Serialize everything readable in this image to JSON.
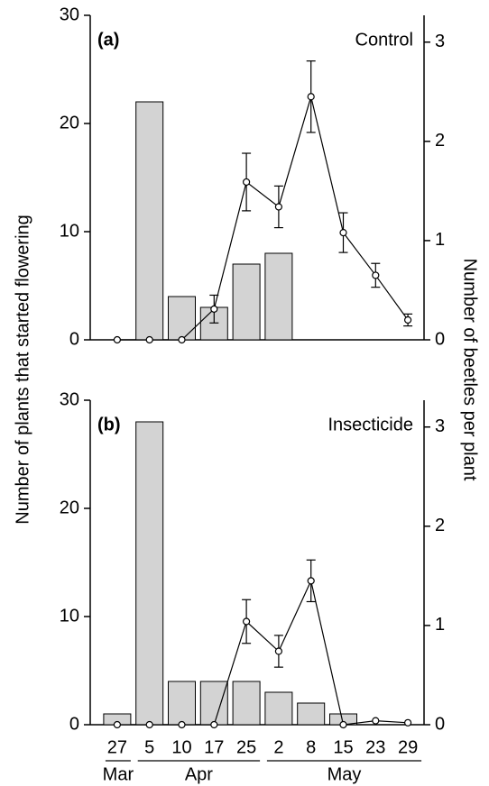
{
  "chart_data": [
    {
      "type": "bar",
      "panel_label": "(a)",
      "annotation": "Control",
      "ylabel": "Number of plants that started flowering",
      "y2label": "Number of beetles per plant",
      "ylim": [
        0,
        30
      ],
      "yticks": [
        0,
        10,
        20,
        30
      ],
      "y2lim": [
        0,
        3.27
      ],
      "y2ticks": [
        0,
        1,
        2,
        3
      ],
      "series": [
        {
          "type": "bar",
          "color": "#d3d3d3",
          "values": [
            0,
            22,
            4,
            3,
            7,
            8,
            0,
            0,
            0,
            0
          ]
        },
        {
          "type": "line",
          "axis": "y2",
          "color": "#000000",
          "values": [
            0,
            0,
            0,
            0.31,
            1.59,
            1.34,
            2.45,
            1.08,
            0.65,
            0.2
          ],
          "errors": [
            null,
            null,
            null,
            0.14,
            0.29,
            0.21,
            0.36,
            0.2,
            0.12,
            0.06
          ]
        }
      ]
    },
    {
      "type": "bar",
      "panel_label": "(b)",
      "annotation": "Insecticide",
      "categories": [
        "27",
        "5",
        "10",
        "17",
        "25",
        "2",
        "8",
        "15",
        "23",
        "29"
      ],
      "months": [
        "Mar",
        "Apr",
        "May"
      ],
      "ylim": [
        0,
        30
      ],
      "yticks": [
        0,
        10,
        20,
        30
      ],
      "y2lim": [
        0,
        3.27
      ],
      "y2ticks": [
        0,
        1,
        2,
        3
      ],
      "series": [
        {
          "type": "bar",
          "color": "#d3d3d3",
          "values": [
            1,
            28,
            4,
            4,
            4,
            3,
            2,
            1,
            0,
            0
          ]
        },
        {
          "type": "line",
          "axis": "y2",
          "color": "#000000",
          "values": [
            0,
            0,
            0,
            0,
            1.04,
            0.74,
            1.45,
            0,
            0.04,
            0.02
          ],
          "errors": [
            null,
            null,
            null,
            null,
            0.22,
            0.16,
            0.21,
            null,
            null,
            null
          ]
        }
      ]
    }
  ]
}
